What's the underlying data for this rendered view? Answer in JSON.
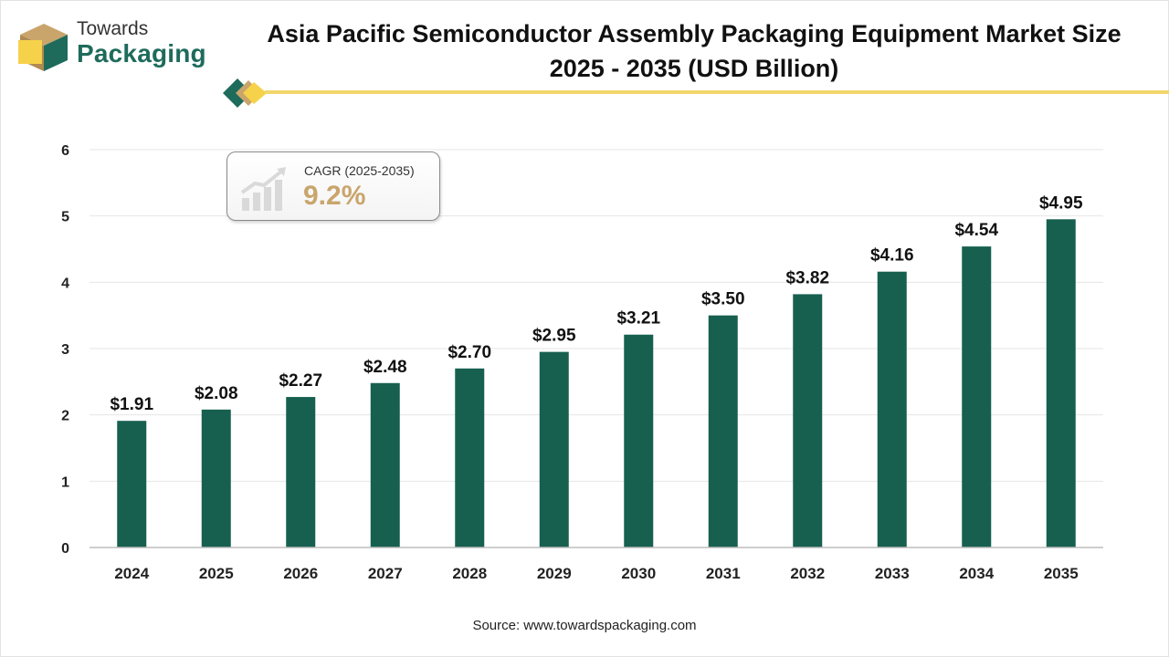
{
  "brand": {
    "line1": "Towards",
    "line2": "Packaging"
  },
  "title": {
    "line1": "Asia Pacific Semiconductor Assembly Packaging Equipment Market Size",
    "line2": "2025 - 2035 (USD Billion)"
  },
  "cagr": {
    "label": "CAGR (2025-2035)",
    "value": "9.2%"
  },
  "source": "Source: www.towardspackaging.com",
  "colors": {
    "bar": "#17604f",
    "accent": "#f2d66b",
    "brand_green": "#1e6b5b",
    "cagr_gold": "#c9a56c"
  },
  "chart_data": {
    "type": "bar",
    "title": "Asia Pacific Semiconductor Assembly Packaging Equipment Market Size 2025 - 2035 (USD Billion)",
    "categories": [
      "2024",
      "2025",
      "2026",
      "2027",
      "2028",
      "2029",
      "2030",
      "2031",
      "2032",
      "2033",
      "2034",
      "2035"
    ],
    "values": [
      1.91,
      2.08,
      2.27,
      2.48,
      2.7,
      2.95,
      3.21,
      3.5,
      3.82,
      4.16,
      4.54,
      4.95
    ],
    "data_labels": [
      "$1.91",
      "$2.08",
      "$2.27",
      "$2.48",
      "$2.70",
      "$2.95",
      "$3.21",
      "$3.50",
      "$3.82",
      "$4.16",
      "$4.54",
      "$4.95"
    ],
    "yticks": [
      0,
      1,
      2,
      3,
      4,
      5,
      6
    ],
    "ylim": [
      0,
      6
    ],
    "xlabel": "",
    "ylabel": "",
    "grid": true,
    "legend": "none"
  }
}
